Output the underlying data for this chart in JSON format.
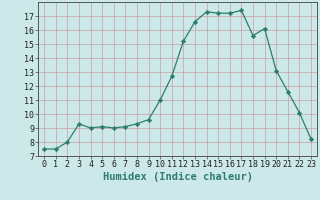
{
  "x": [
    0,
    1,
    2,
    3,
    4,
    5,
    6,
    7,
    8,
    9,
    10,
    11,
    12,
    13,
    14,
    15,
    16,
    17,
    18,
    19,
    20,
    21,
    22,
    23
  ],
  "y": [
    7.5,
    7.5,
    8.0,
    9.3,
    9.0,
    9.1,
    9.0,
    9.1,
    9.3,
    9.6,
    11.0,
    12.7,
    15.2,
    16.6,
    17.3,
    17.2,
    17.2,
    17.4,
    15.6,
    16.1,
    13.1,
    11.6,
    10.1,
    8.2
  ],
  "line_color": "#2e7d6e",
  "marker": "D",
  "marker_size": 2.2,
  "bg_color": "#cce8e8",
  "grid_color": "#c8a0a0",
  "xlabel": "Humidex (Indice chaleur)",
  "xlim": [
    -0.5,
    23.5
  ],
  "ylim": [
    7,
    18
  ],
  "yticks": [
    7,
    8,
    9,
    10,
    11,
    12,
    13,
    14,
    15,
    16,
    17
  ],
  "xticks": [
    0,
    1,
    2,
    3,
    4,
    5,
    6,
    7,
    8,
    9,
    10,
    11,
    12,
    13,
    14,
    15,
    16,
    17,
    18,
    19,
    20,
    21,
    22,
    23
  ],
  "tick_fontsize": 6,
  "xlabel_fontsize": 7.5
}
